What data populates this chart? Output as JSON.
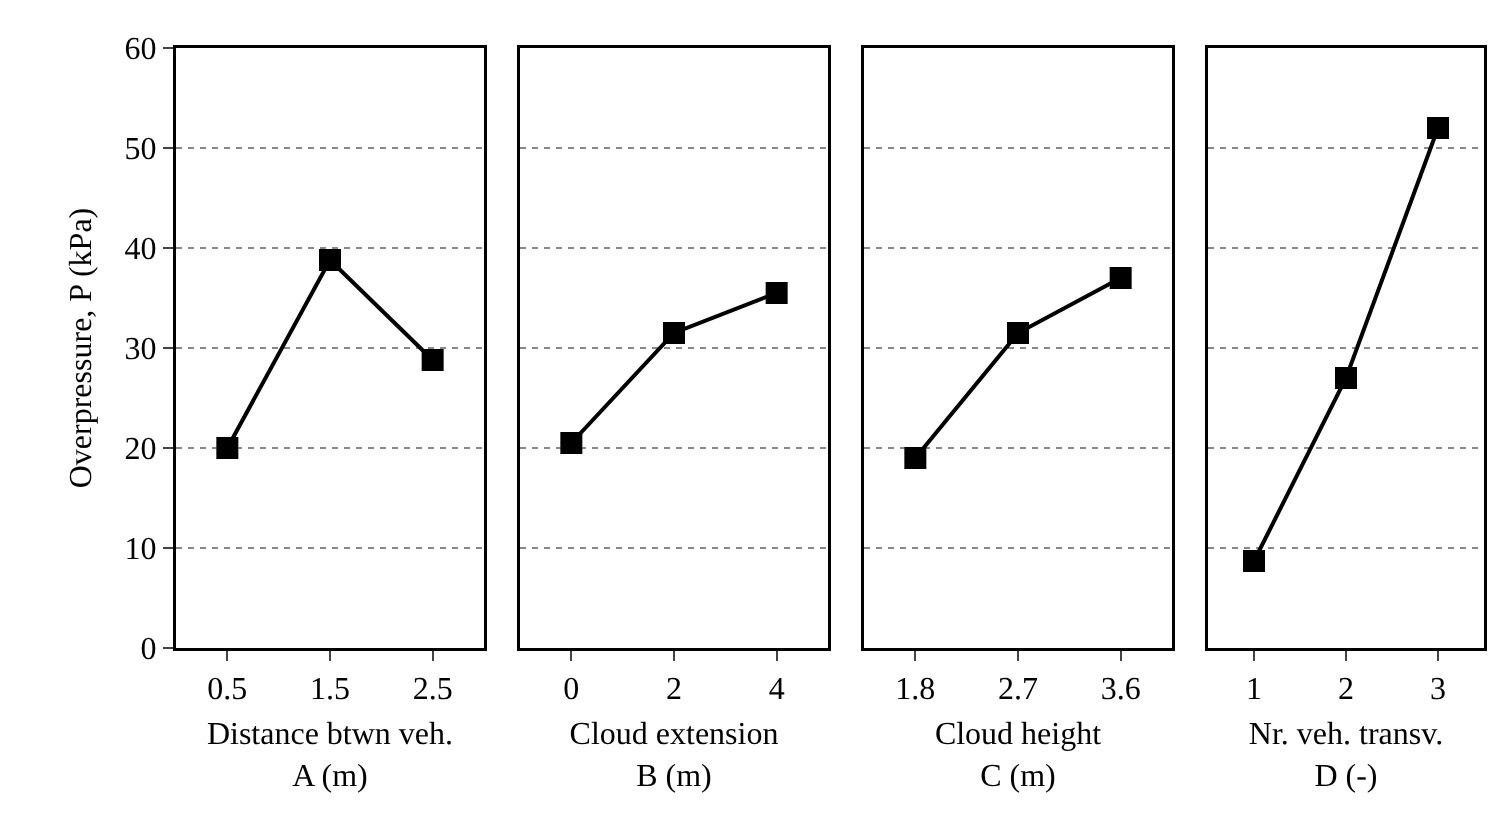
{
  "chart_data": [
    {
      "type": "line",
      "categories": [
        "0.5",
        "1.5",
        "2.5"
      ],
      "values": [
        20,
        38.8,
        28.8
      ],
      "color": "#000000",
      "marker": "square",
      "xlabel": "Distance btwn veh.\nA (m)",
      "ylabel": "Overpressure, P (kPa)",
      "ylim": [
        0,
        60
      ],
      "yticks": [
        0,
        10,
        20,
        30,
        40,
        50,
        60
      ],
      "grid": "y"
    },
    {
      "type": "line",
      "categories": [
        "0",
        "2",
        "4"
      ],
      "values": [
        20.5,
        31.5,
        35.5
      ],
      "color": "#000000",
      "marker": "square",
      "xlabel": "Cloud extension\nB (m)",
      "ylim": [
        0,
        60
      ],
      "yticks": [
        0,
        10,
        20,
        30,
        40,
        50,
        60
      ],
      "grid": "y",
      "tick_labels": "x"
    },
    {
      "type": "line",
      "categories": [
        "1.8",
        "2.7",
        "3.6"
      ],
      "values": [
        19,
        31.5,
        37
      ],
      "color": "#000000",
      "marker": "square",
      "xlabel": "Cloud height\nC (m)",
      "ylim": [
        0,
        60
      ],
      "yticks": [
        0,
        10,
        20,
        30,
        40,
        50,
        60
      ],
      "grid": "y",
      "tick_labels": "x"
    },
    {
      "type": "line",
      "categories": [
        "1",
        "2",
        "3"
      ],
      "values": [
        8.7,
        27,
        52
      ],
      "color": "#000000",
      "marker": "square",
      "xlabel": "Nr. veh. transv.\nD (-)",
      "ylim": [
        0,
        60
      ],
      "yticks": [
        0,
        10,
        20,
        30,
        40,
        50,
        60
      ],
      "grid": "y",
      "tick_labels": "x"
    }
  ]
}
